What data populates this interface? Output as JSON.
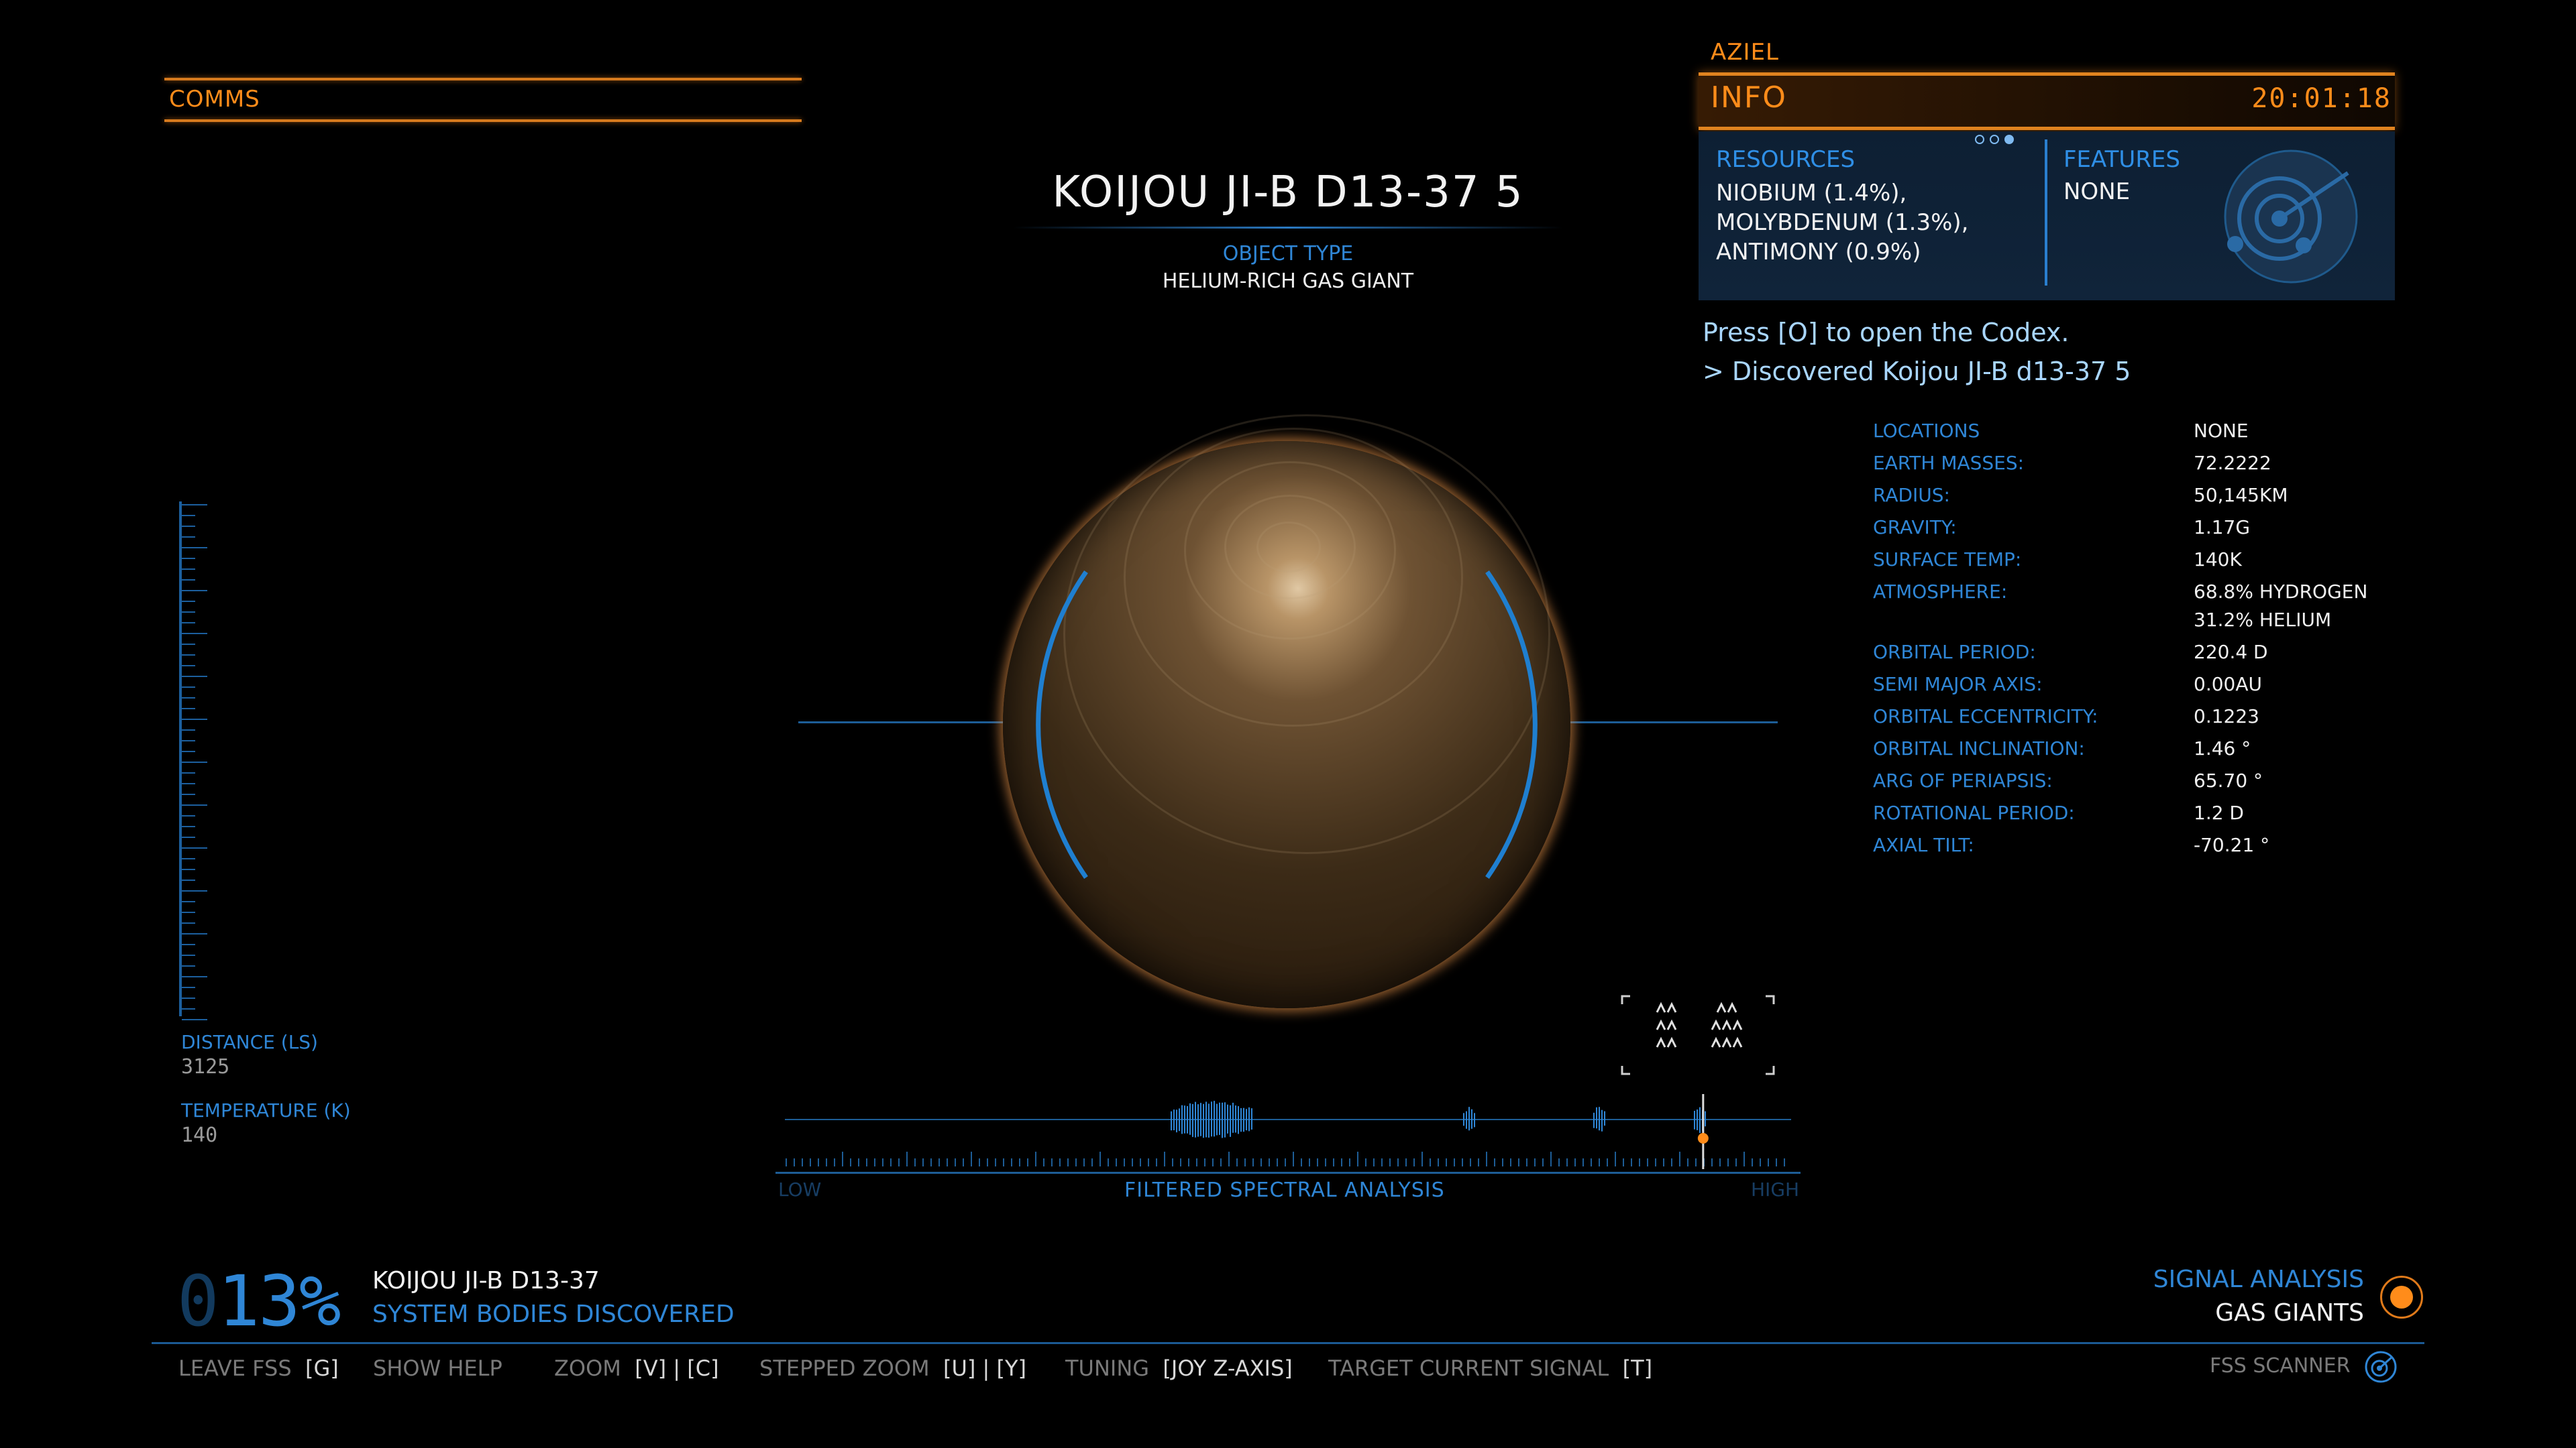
{
  "comms": {
    "label": "COMMS"
  },
  "target": {
    "name": "KOIJOU JI-B D13-37 5",
    "object_type_label": "OBJECT TYPE",
    "object_type": "HELIUM-RICH GAS GIANT"
  },
  "info_panel": {
    "commander": "AZIEL",
    "title": "INFO",
    "time": "20:01:18",
    "page_dots": 3,
    "active_dot": 3,
    "resources_label": "RESOURCES",
    "resources": [
      "NIOBIUM (1.4%),",
      "MOLYBDENUM (1.3%),",
      "ANTIMONY (0.9%)"
    ],
    "features_label": "FEATURES",
    "features": "NONE",
    "codex_hint": "Press [O] to open the Codex.",
    "discovered": "> Discovered Koijou JI-B d13-37 5"
  },
  "stats": [
    {
      "label": "LOCATIONS",
      "value": "NONE"
    },
    {
      "label": "EARTH MASSES:",
      "value": "72.2222"
    },
    {
      "label": "RADIUS:",
      "value": "50,145KM"
    },
    {
      "label": "GRAVITY:",
      "value": "1.17G"
    },
    {
      "label": "SURFACE TEMP:",
      "value": "140K"
    },
    {
      "label": "ATMOSPHERE:",
      "value": "68.8% HYDROGEN"
    },
    {
      "label": "",
      "value": "31.2% HELIUM"
    },
    {
      "label": "ORBITAL PERIOD:",
      "value": "220.4 D"
    },
    {
      "label": "SEMI MAJOR AXIS:",
      "value": "0.00AU"
    },
    {
      "label": "ORBITAL ECCENTRICITY:",
      "value": "0.1223"
    },
    {
      "label": "ORBITAL INCLINATION:",
      "value": "1.46 °"
    },
    {
      "label": "ARG OF PERIAPSIS:",
      "value": "65.70 °"
    },
    {
      "label": "ROTATIONAL PERIOD:",
      "value": "1.2 D"
    },
    {
      "label": "AXIAL TILT:",
      "value": "-70.21 °"
    }
  ],
  "gauge": {
    "distance_label": "DISTANCE (LS)",
    "distance_value": "3125",
    "temperature_label": "TEMPERATURE (K)",
    "temperature_value": "140"
  },
  "spectral": {
    "low_label": "LOW",
    "high_label": "HIGH",
    "title": "FILTERED SPECTRAL ANALYSIS",
    "target_position": 0.905
  },
  "progress": {
    "percent_dim": "0",
    "percent": "13%",
    "system_name": "KOIJOU JI-B D13-37",
    "discovered_label": "SYSTEM BODIES DISCOVERED"
  },
  "signal": {
    "label": "SIGNAL ANALYSIS",
    "value": "GAS GIANTS"
  },
  "controls": [
    {
      "label": "LEAVE FSS",
      "keys": "[G]"
    },
    {
      "label": "SHOW HELP",
      "keys": ""
    },
    {
      "label": "ZOOM",
      "keys": "[V] | [C]"
    },
    {
      "label": "STEPPED ZOOM",
      "keys": "[U] | [Y]"
    },
    {
      "label": "TUNING",
      "keys": "[JOY Z-AXIS]"
    },
    {
      "label": "TARGET CURRENT SIGNAL",
      "keys": "[T]"
    }
  ],
  "mode": {
    "label": "FSS SCANNER"
  },
  "colors": {
    "accent_orange": "#ff8c1a",
    "accent_blue": "#2f86d6",
    "background": "#000000"
  }
}
